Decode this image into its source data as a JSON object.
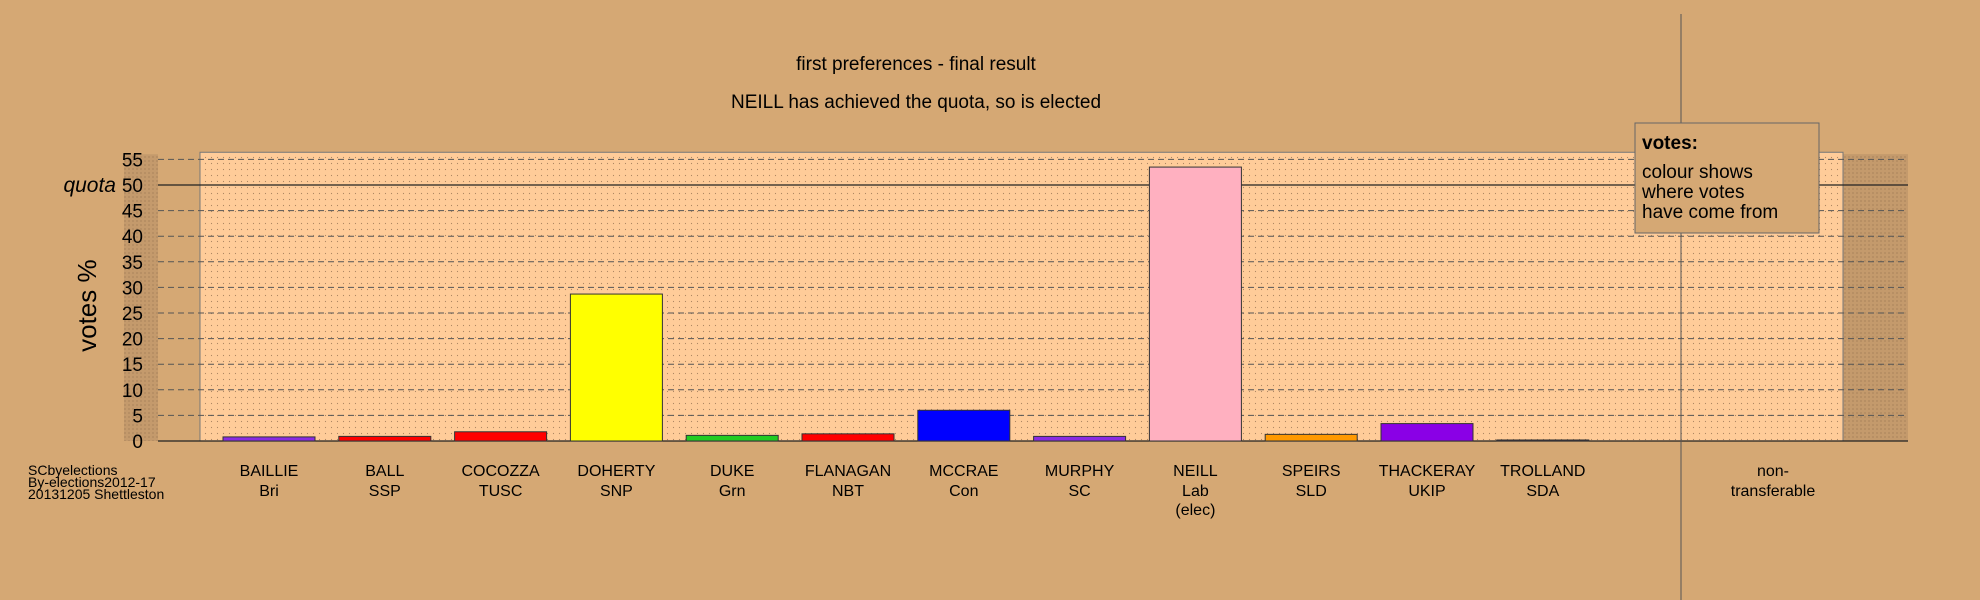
{
  "chart_data": {
    "type": "bar",
    "title": "first preferences - final result",
    "subtitle": "NEILL has achieved the quota, so is elected",
    "ylabel": "votes %",
    "quota_label": "quota",
    "quota": 50,
    "ylim": [
      0,
      56
    ],
    "yticks": [
      0,
      5,
      10,
      15,
      20,
      25,
      30,
      35,
      40,
      45,
      50,
      55
    ],
    "grid": true,
    "legend": {
      "title": "votes:",
      "lines": [
        "colour shows",
        "where votes",
        "have come from"
      ],
      "placement": "top-right"
    },
    "categories": [
      {
        "name": "BAILLIE",
        "party": "Bri",
        "value": 0.8,
        "color": "#8a2be2"
      },
      {
        "name": "BALL",
        "party": "SSP",
        "value": 0.9,
        "color": "#ff0000"
      },
      {
        "name": "COCOZZA",
        "party": "TUSC",
        "value": 1.8,
        "color": "#ff0000"
      },
      {
        "name": "DOHERTY",
        "party": "SNP",
        "value": 28.7,
        "color": "#ffff00"
      },
      {
        "name": "DUKE",
        "party": "Grn",
        "value": 1.1,
        "color": "#22cc22"
      },
      {
        "name": "FLANAGAN",
        "party": "NBT",
        "value": 1.4,
        "color": "#ff0000"
      },
      {
        "name": "MCCRAE",
        "party": "Con",
        "value": 6.0,
        "color": "#0000ff"
      },
      {
        "name": "MURPHY",
        "party": "SC",
        "value": 0.9,
        "color": "#8a2be2"
      },
      {
        "name": "NEILL",
        "party": "Lab",
        "note": "(elec)",
        "value": 53.5,
        "color": "#ffb0c0"
      },
      {
        "name": "SPEIRS",
        "party": "SLD",
        "value": 1.3,
        "color": "#ff9900"
      },
      {
        "name": "THACKERAY",
        "party": "UKIP",
        "value": 3.4,
        "color": "#8a00e6"
      },
      {
        "name": "TROLLAND",
        "party": "SDA",
        "value": 0.2,
        "color": "#8a2be2"
      }
    ],
    "nontransferable": {
      "line1": "non-",
      "line2": "transferable",
      "value": 0
    }
  },
  "footer": {
    "line1": "SCbyelections",
    "line2": "By-elections2012-17",
    "line3": "20131205 Shettleston"
  }
}
